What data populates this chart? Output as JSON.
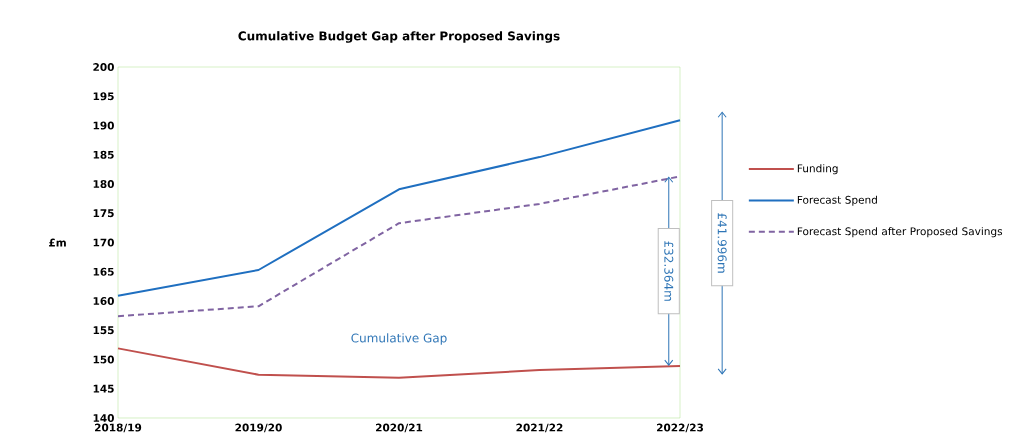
{
  "chart_data": {
    "type": "line",
    "title": "Cumulative Budget Gap after Proposed Savings",
    "ylabel": "£m",
    "categories": [
      "2018/19",
      "2019/20",
      "2020/21",
      "2021/22",
      "2022/23"
    ],
    "series": [
      {
        "name": "Funding",
        "color": "#c0504d",
        "values": [
          151.9,
          147.4,
          146.9,
          148.2,
          148.9
        ]
      },
      {
        "name": "Forecast Spend",
        "color": "#1f6fc0",
        "values": [
          160.9,
          165.3,
          179.1,
          184.6,
          190.9
        ]
      },
      {
        "name": "Forecast Spend after Proposed Savings",
        "color": "#8064a2",
        "line_style": "dashed",
        "values": [
          157.4,
          159.1,
          173.3,
          176.6,
          181.3
        ]
      }
    ],
    "ylim": [
      140,
      200
    ],
    "yticks": [
      140,
      145,
      150,
      155,
      160,
      165,
      170,
      175,
      180,
      185,
      190,
      195,
      200
    ],
    "annotations": [
      "Cumulative Gap",
      "£32.364m",
      "£41.996m"
    ],
    "legend": "right",
    "grid": false,
    "marker": "none",
    "line_style": "solid"
  }
}
